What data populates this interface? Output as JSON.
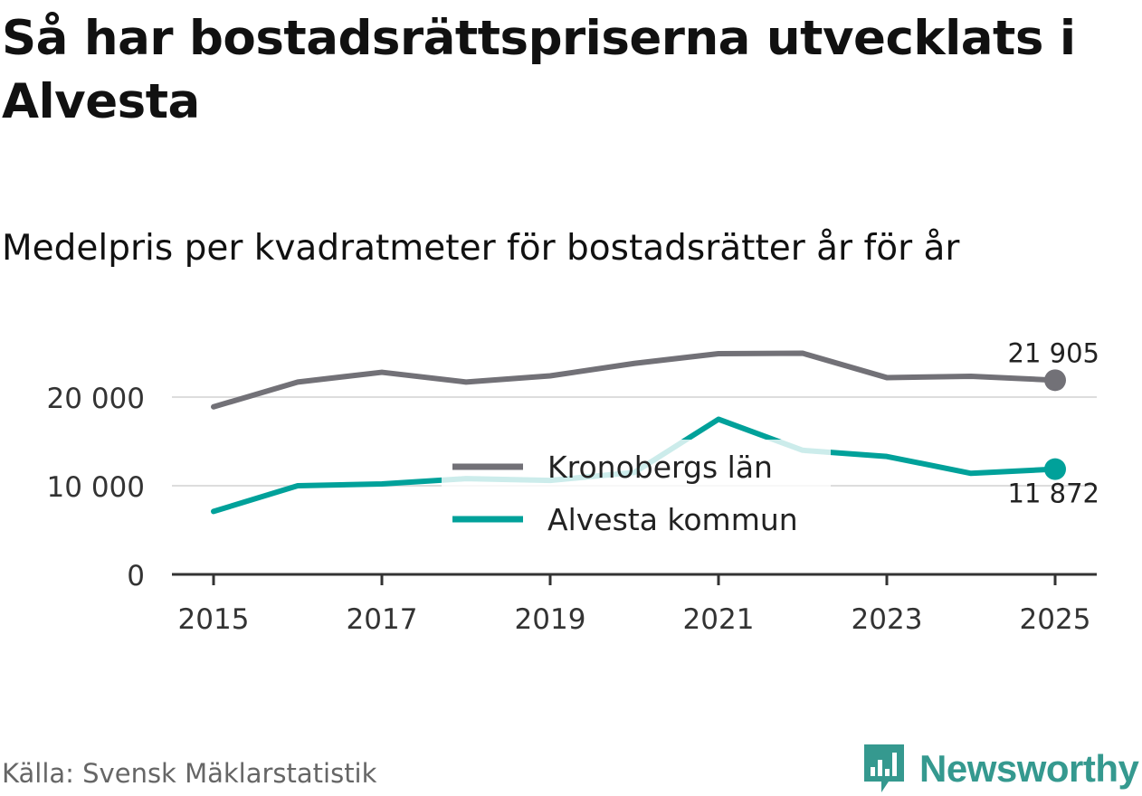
{
  "title": "Så har bostadsrättspriserna utvecklats i Alvesta",
  "subtitle": "Medelpris per kvadratmeter för bostadsrätter år för år",
  "source": "Källa: Svensk Mäklarstatistik",
  "brand": {
    "name": "Newsworthy",
    "color": "#35998f",
    "icon": "newsworthy-logo-icon"
  },
  "chart_data": {
    "type": "line",
    "x": [
      2015,
      2016,
      2017,
      2018,
      2019,
      2020,
      2021,
      2022,
      2023,
      2024,
      2025
    ],
    "xticks": [
      2015,
      2017,
      2019,
      2021,
      2023,
      2025
    ],
    "xtick_labels": [
      "2015",
      "2017",
      "2019",
      "2021",
      "2023",
      "2025"
    ],
    "yticks": [
      0,
      10000,
      20000
    ],
    "ytick_labels": [
      "0",
      "10 000",
      "20 000"
    ],
    "ylim": [
      0,
      25000
    ],
    "grid": true,
    "xlabel": "",
    "ylabel": "",
    "legend_position": "center",
    "series": [
      {
        "name": "Kronobergs län",
        "color": "#727177",
        "values": [
          18900,
          21700,
          22800,
          21700,
          22400,
          23800,
          24900,
          24950,
          22200,
          22350,
          21905
        ],
        "end_label": "21 905",
        "end_label_position": "above"
      },
      {
        "name": "Alvesta kommun",
        "color": "#00a19a",
        "values": [
          7100,
          10000,
          10200,
          10800,
          10600,
          11500,
          17500,
          14000,
          13300,
          11400,
          11872
        ],
        "end_label": "11 872",
        "end_label_position": "below"
      }
    ]
  }
}
